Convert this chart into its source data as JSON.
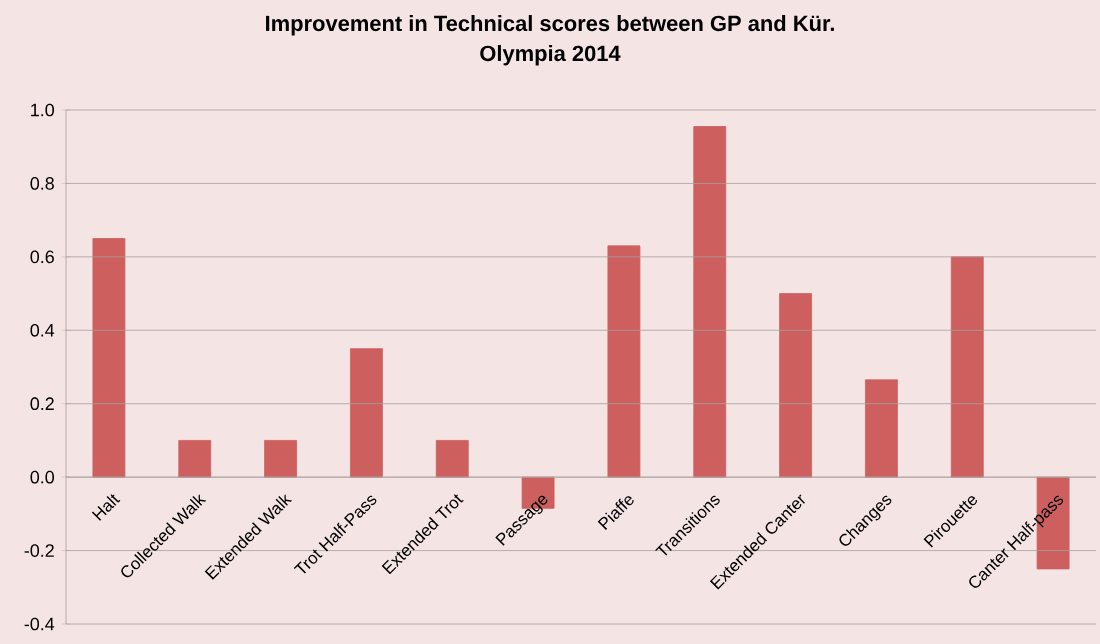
{
  "chart_data": {
    "type": "bar",
    "title": "Improvement in Technical scores between GP and Kür.",
    "subtitle": "Olympia 2014",
    "categories": [
      "Halt",
      "Collected Walk",
      "Extended Walk",
      "Trot Half-Pass",
      "Extended Trot",
      "Passage",
      "Piaffe",
      "Transitions",
      "Extended Canter",
      "Changes",
      "Pirouette",
      "Canter Half-pass"
    ],
    "values": [
      0.65,
      0.1,
      0.1,
      0.35,
      0.1,
      -0.085,
      0.63,
      0.955,
      0.5,
      0.265,
      0.6,
      -0.25
    ],
    "color": "#cd5f5f",
    "ylim": [
      -0.4,
      1.0
    ],
    "yticks": [
      {
        "value": -0.4,
        "label": "-0.4"
      },
      {
        "value": -0.2,
        "label": "-0.2"
      },
      {
        "value": 0,
        "label": "0.0"
      },
      {
        "value": 0.2,
        "label": "0.2"
      },
      {
        "value": 0.4,
        "label": "0.4"
      },
      {
        "value": 0.6,
        "label": "0.6"
      },
      {
        "value": 0.8,
        "label": "0.8"
      },
      {
        "value": 1.0,
        "label": "1.0"
      }
    ],
    "grid": "y"
  }
}
